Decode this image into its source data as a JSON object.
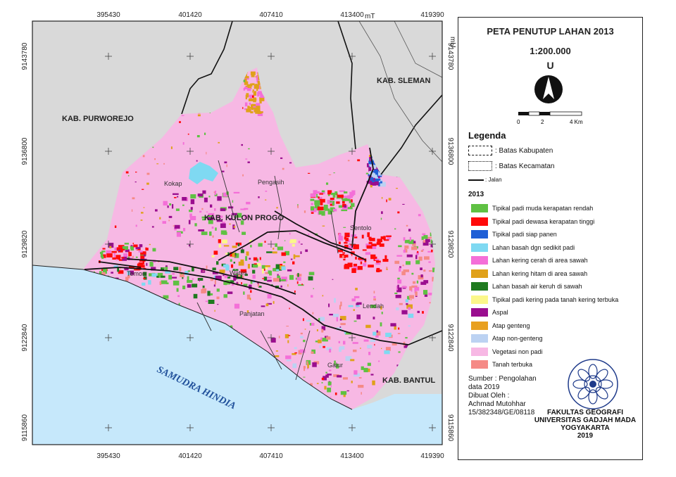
{
  "map": {
    "grid_x_labels": [
      "395430",
      "401420",
      "407410",
      "413400",
      "419390"
    ],
    "x_unit": "mT",
    "grid_y_labels": [
      "9143780",
      "9136800",
      "9129820",
      "9122840",
      "9115860"
    ],
    "y_unit": "mU",
    "regions": {
      "purworejo": "KAB. PURWOREJO",
      "sleman": "KAB. SLEMAN",
      "kulon_progo": "KAB. KULON PROGO",
      "bantul": "KAB. BANTUL",
      "sea": "SAMUDRA HINDIA"
    },
    "places": {
      "kokap": "Kokap",
      "pengasih": "Pengasih",
      "sentolo": "Sentolo",
      "temon": "Temon",
      "wates": "Wates",
      "panjatan": "Panjatan",
      "lendah": "Lendah",
      "galur": "Galur"
    },
    "colors": {
      "sea": "#c6e8fb",
      "outside": "#d9d9d9",
      "veg": "#f7b8e4"
    }
  },
  "panel": {
    "title": "PETA PENUTUP LAHAN 2013",
    "scale": "1:200.000",
    "north_letter": "U",
    "scalebar_labels": [
      "0",
      "2",
      "4 Km"
    ],
    "legend_title": "Legenda",
    "boundaries": [
      {
        "label": ": Batas Kabupaten",
        "style": "dashed"
      },
      {
        "label": ": Batas Kecamatan",
        "style": "dashdot"
      },
      {
        "label": ": Jalan",
        "style": "line"
      }
    ],
    "year": "2013",
    "classes": [
      {
        "label": "Tipikal padi muda kerapatan rendah",
        "color": "#5fc143"
      },
      {
        "label": "Tipikal padi dewasa kerapatan tinggi",
        "color": "#ff0a0a"
      },
      {
        "label": "Tipikal padi siap panen",
        "color": "#1f5fd6"
      },
      {
        "label": "Lahan basah dgn sedikit padi",
        "color": "#7fd9f2"
      },
      {
        "label": "Lahan kering cerah di area sawah",
        "color": "#f46fd8"
      },
      {
        "label": "Lahan kering hitam di area sawah",
        "color": "#e0a11a"
      },
      {
        "label": "Lahan basah air keruh di sawah",
        "color": "#1f7a1f"
      },
      {
        "label": "Tipikal padi kering pada tanah kering terbuka",
        "color": "#fbf78a"
      },
      {
        "label": "Aspal",
        "color": "#9a0e8f"
      },
      {
        "label": "Atap genteng",
        "color": "#e8a020"
      },
      {
        "label": "Atap non-genteng",
        "color": "#bcd2f2"
      },
      {
        "label": "Vegetasi non padi",
        "color": "#f7b8e4"
      },
      {
        "label": "Tanah terbuka",
        "color": "#f58a86"
      }
    ],
    "source": [
      "Sumber : Pengolahan",
      "data 2019",
      "Dibuat Oleh :",
      "Achmad Mutohhar",
      "15/382348/GE/08118"
    ],
    "faculty": [
      "FAKULTAS GEOGRAFI",
      "UNIVERSITAS GADJAH MADA",
      "YOGYAKARTA",
      "2019"
    ]
  }
}
